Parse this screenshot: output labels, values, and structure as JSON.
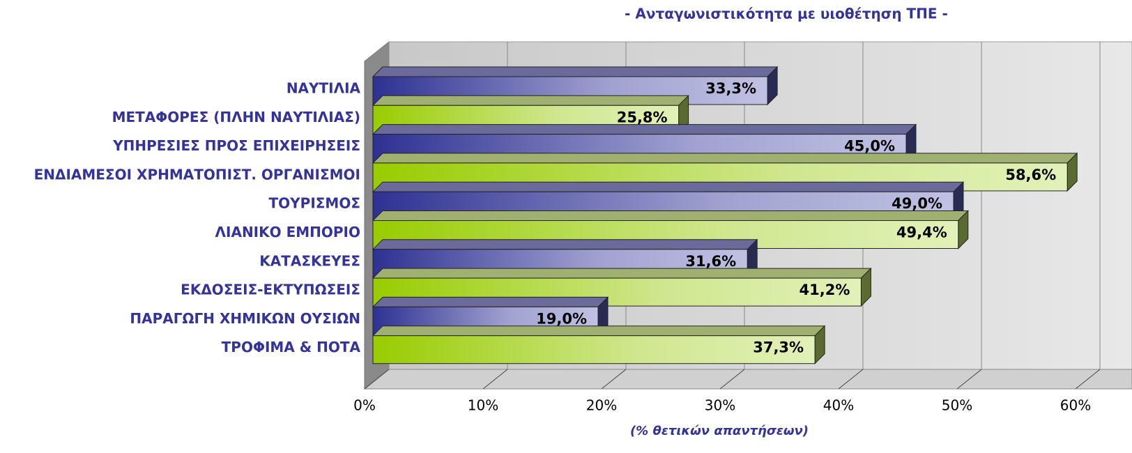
{
  "chart_data": {
    "type": "bar3d_horizontal",
    "title": "- Ανταγωνιστικότητα με υιοθέτηση ΤΠΕ -",
    "x_label": "(% θετικών απαντήσεων)",
    "categories": [
      "ΝΑΥΤΙΛΙΑ",
      "ΜΕΤΑΦΟΡΕΣ (ΠΛΗΝ ΝΑΥΤΙΛΙΑΣ)",
      "ΥΠΗΡΕΣΙΕΣ ΠΡΟΣ ΕΠΙΧΕΙΡΗΣΕΙΣ",
      "ΕΝΔΙΑΜΕΣΟΙ ΧΡΗΜΑΤΟΠΙΣΤ. ΟΡΓΑΝΙΣΜΟΙ",
      "ΤΟΥΡΙΣΜΟΣ",
      "ΛΙΑΝΙΚΟ ΕΜΠΟΡΙΟ",
      "ΚΑΤΑΣΚΕΥΕΣ",
      "ΕΚΔΟΣΕΙΣ-ΕΚΤΥΠΩΣΕΙΣ",
      "ΠΑΡΑΓΩΓΗ ΧΗΜΙΚΩΝ ΟΥΣΙΩΝ",
      "ΤΡΟΦΙΜΑ & ΠΟΤΑ"
    ],
    "values": [
      33.3,
      25.8,
      45.0,
      58.6,
      49.0,
      49.4,
      31.6,
      41.2,
      19.0,
      37.3
    ],
    "value_labels": [
      "33,3%",
      "25,8%",
      "45,0%",
      "58,6%",
      "49,0%",
      "49,4%",
      "31,6%",
      "41,2%",
      "19,0%",
      "37,3%"
    ],
    "colors": [
      "#2e3192",
      "#99cc00",
      "#2e3192",
      "#99cc00",
      "#2e3192",
      "#99cc00",
      "#2e3192",
      "#99cc00",
      "#2e3192",
      "#99cc00"
    ],
    "xlim": [
      0,
      60
    ],
    "xticks": [
      {
        "value": 0,
        "label": "0%"
      },
      {
        "value": 10,
        "label": "10%"
      },
      {
        "value": 20,
        "label": "20%"
      },
      {
        "value": 30,
        "label": "30%"
      },
      {
        "value": 40,
        "label": "40%"
      },
      {
        "value": 50,
        "label": "50%"
      },
      {
        "value": 60,
        "label": "60%"
      }
    ],
    "grid": true
  }
}
